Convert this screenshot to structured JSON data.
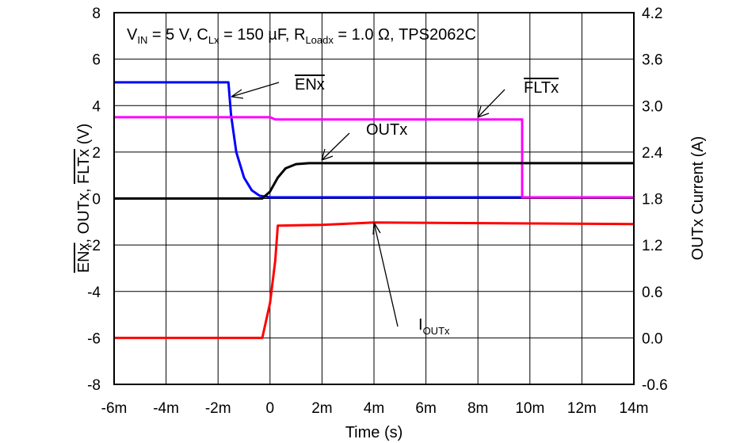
{
  "chart_data": {
    "type": "line",
    "annotation": {
      "v_main": "V",
      "v_sub": "IN",
      "v_rest": " = 5 V, C",
      "c_sub": "Lx",
      "c_rest": " = 150 µF, R",
      "r_sub": "Loadx",
      "r_rest": " = 1.0 Ω, TPS2062C"
    },
    "xlabel": "Time (s)",
    "ylabel_left": {
      "part1": "ENx",
      "part2": ", OUTx, ",
      "part3": "FLTx",
      "part4": " (V)"
    },
    "ylabel_right": "OUTx Current (A)",
    "x_ticks": [
      "-6m",
      "-4m",
      "-2m",
      "0",
      "2m",
      "4m",
      "6m",
      "8m",
      "10m",
      "12m",
      "14m"
    ],
    "y_left_ticks": [
      "8",
      "6",
      "4",
      "2",
      "0",
      "-2",
      "-4",
      "-6",
      "-8"
    ],
    "y_right_ticks": [
      "4.2",
      "3.6",
      "3.0",
      "2.4",
      "1.8",
      "1.2",
      "0.6",
      "0.0",
      "-0.6"
    ],
    "xlim": [
      -0.006,
      0.014
    ],
    "ylim_left": [
      -8,
      8
    ],
    "ylim_right": [
      -0.6,
      4.2
    ],
    "grid": true,
    "series": [
      {
        "name": "ENx",
        "overline": true,
        "color": "#0000ff",
        "axis": "left",
        "points": [
          [
            -0.006,
            5.0
          ],
          [
            -0.0016,
            5.0
          ],
          [
            -0.0015,
            3.6
          ],
          [
            -0.0013,
            2.0
          ],
          [
            -0.001,
            0.9
          ],
          [
            -0.0007,
            0.35
          ],
          [
            -0.0004,
            0.12
          ],
          [
            0.0,
            0.05
          ],
          [
            0.014,
            0.05
          ]
        ]
      },
      {
        "name": "FLTx",
        "overline": true,
        "color": "#ff00ff",
        "axis": "left",
        "points": [
          [
            -0.006,
            3.5
          ],
          [
            0.0,
            3.5
          ],
          [
            0.0002,
            3.4
          ],
          [
            0.0097,
            3.4
          ],
          [
            0.0097,
            0.05
          ],
          [
            0.014,
            0.05
          ]
        ]
      },
      {
        "name": "OUTx",
        "overline": false,
        "color": "#000000",
        "axis": "left",
        "points": [
          [
            -0.006,
            0.0
          ],
          [
            -0.0003,
            0.0
          ],
          [
            0.0,
            0.3
          ],
          [
            0.0003,
            0.9
          ],
          [
            0.0006,
            1.3
          ],
          [
            0.001,
            1.48
          ],
          [
            0.0015,
            1.52
          ],
          [
            0.014,
            1.52
          ]
        ]
      },
      {
        "name": "IOUTx",
        "label_main": "I",
        "label_sub": "OUTx",
        "color": "#ff0000",
        "axis": "right",
        "points": [
          [
            -0.006,
            0.0
          ],
          [
            -0.0003,
            0.0
          ],
          [
            0.0,
            0.45
          ],
          [
            0.0002,
            1.0
          ],
          [
            0.0003,
            1.45
          ],
          [
            0.002,
            1.46
          ],
          [
            0.004,
            1.49
          ],
          [
            0.014,
            1.47
          ]
        ]
      }
    ],
    "callouts": [
      {
        "series": "ENx",
        "text_x": 0.0,
        "text_y": 4.9,
        "tip_x": -0.0016,
        "tip_y": 4.4
      },
      {
        "series": "FLTx",
        "text_x": 0.0,
        "text_y": 4.8,
        "tip_x": 0.008,
        "tip_y": 3.4
      },
      {
        "series": "OUTx",
        "text_x": 0.0,
        "text_y": 2.9,
        "tip_x": 0.002,
        "tip_y": 1.55
      },
      {
        "series": "IOUTx",
        "text_x": 0.0,
        "text_y": -5.5,
        "tip_x": 0.004,
        "tip_y": -0.95
      }
    ]
  }
}
